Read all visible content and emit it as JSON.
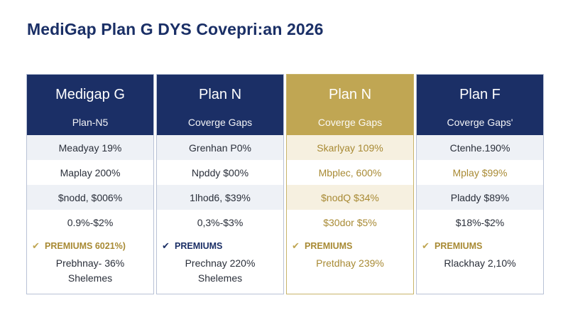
{
  "page": {
    "title": "MediGap Plan G   DYS Covepri:an 2026"
  },
  "plans": [
    {
      "title": "Medigap G",
      "subtitle": "Plan-N5",
      "rows": [
        "Meadyay 19%",
        "Maplay 200%",
        "$nodd, $006%",
        "0.9%-$2%"
      ],
      "premium_label": "PREMIUMS 6021%)",
      "foot_lines": [
        "Prebhnay- 36%",
        "Shelemes"
      ],
      "accent": "#1b2f66"
    },
    {
      "title": "Plan N",
      "subtitle": "Coverge Gaps",
      "rows": [
        "Grenhan P0%",
        "Npddy $00%",
        "1lhod6, $39%",
        "0,3%-$3%"
      ],
      "premium_label": "PREMIUMS",
      "foot_lines": [
        "Prechnay 220%",
        "Shelemes"
      ],
      "accent": "#1b2f66"
    },
    {
      "title": "Plan N",
      "subtitle": "Coverge Gaps",
      "rows": [
        "Skarlyay 109%",
        "Mbplec, 600%",
        "$nodQ $34%",
        "$30dor $5%"
      ],
      "premium_label": "PREMIUMS",
      "foot_lines": [
        "Pretdhay 239%"
      ],
      "accent": "#c0a653"
    },
    {
      "title": "Plan F",
      "subtitle": "Coverge Gaps'",
      "rows": [
        "Ctenhe.190%",
        "Mplay $99%",
        "Pladdy $89%",
        "$18%-$2%"
      ],
      "premium_label": "PREMIUMS",
      "foot_lines": [
        "Rlackhay 2,10%"
      ],
      "accent": "#1b2f66"
    }
  ],
  "icons": {
    "premium_marker": "check-icon"
  },
  "colors": {
    "navy": "#1b2f66",
    "gold": "#c0a653"
  }
}
